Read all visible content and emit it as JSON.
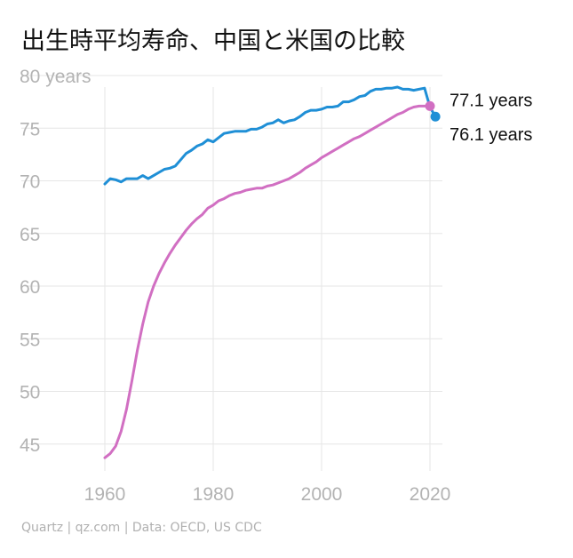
{
  "title": "出生時平均寿命、中国と米国の比較",
  "source": "Quartz | qz.com | Data: OECD, US CDC",
  "chart_data": {
    "type": "line",
    "title": "出生時平均寿命、中国と米国の比較",
    "y_unit_label": "80 years",
    "ylim": [
      43,
      80
    ],
    "xlim": [
      1960,
      2021
    ],
    "y_ticks": [
      "80 years",
      "75",
      "70",
      "65",
      "60",
      "55",
      "50",
      "45"
    ],
    "y_tick_values": [
      80,
      75,
      70,
      65,
      60,
      55,
      50,
      45
    ],
    "x_ticks": [
      "1960",
      "1980",
      "2000",
      "2020"
    ],
    "x_tick_values": [
      1960,
      1980,
      2000,
      2020
    ],
    "grid": true,
    "colors": {
      "us": "#1f8fd6",
      "china": "#d16fc2"
    },
    "end_labels": {
      "china": "77.1 years",
      "us": "76.1 years"
    },
    "series": [
      {
        "key": "us",
        "x": [
          1960,
          1961,
          1962,
          1963,
          1964,
          1965,
          1966,
          1967,
          1968,
          1969,
          1970,
          1971,
          1972,
          1973,
          1974,
          1975,
          1976,
          1977,
          1978,
          1979,
          1980,
          1981,
          1982,
          1983,
          1984,
          1985,
          1986,
          1987,
          1988,
          1989,
          1990,
          1991,
          1992,
          1993,
          1994,
          1995,
          1996,
          1997,
          1998,
          1999,
          2000,
          2001,
          2002,
          2003,
          2004,
          2005,
          2006,
          2007,
          2008,
          2009,
          2010,
          2011,
          2012,
          2013,
          2014,
          2015,
          2016,
          2017,
          2018,
          2019,
          2020,
          2021
        ],
        "values": [
          69.7,
          70.2,
          70.1,
          69.9,
          70.2,
          70.2,
          70.2,
          70.5,
          70.2,
          70.5,
          70.8,
          71.1,
          71.2,
          71.4,
          72.0,
          72.6,
          72.9,
          73.3,
          73.5,
          73.9,
          73.7,
          74.1,
          74.5,
          74.6,
          74.7,
          74.7,
          74.7,
          74.9,
          74.9,
          75.1,
          75.4,
          75.5,
          75.8,
          75.5,
          75.7,
          75.8,
          76.1,
          76.5,
          76.7,
          76.7,
          76.8,
          77.0,
          77.0,
          77.1,
          77.5,
          77.5,
          77.7,
          78.0,
          78.1,
          78.5,
          78.7,
          78.7,
          78.8,
          78.8,
          78.9,
          78.7,
          78.7,
          78.6,
          78.7,
          78.8,
          77.0,
          76.1
        ]
      },
      {
        "key": "china",
        "x": [
          1960,
          1961,
          1962,
          1963,
          1964,
          1965,
          1966,
          1967,
          1968,
          1969,
          1970,
          1971,
          1972,
          1973,
          1974,
          1975,
          1976,
          1977,
          1978,
          1979,
          1980,
          1981,
          1982,
          1983,
          1984,
          1985,
          1986,
          1987,
          1988,
          1989,
          1990,
          1991,
          1992,
          1993,
          1994,
          1995,
          1996,
          1997,
          1998,
          1999,
          2000,
          2001,
          2002,
          2003,
          2004,
          2005,
          2006,
          2007,
          2008,
          2009,
          2010,
          2011,
          2012,
          2013,
          2014,
          2015,
          2016,
          2017,
          2018,
          2019,
          2020
        ],
        "values": [
          43.7,
          44.1,
          44.8,
          46.2,
          48.3,
          51.0,
          53.9,
          56.4,
          58.5,
          60.0,
          61.2,
          62.2,
          63.1,
          63.9,
          64.6,
          65.3,
          65.9,
          66.4,
          66.8,
          67.4,
          67.7,
          68.1,
          68.3,
          68.6,
          68.8,
          68.9,
          69.1,
          69.2,
          69.3,
          69.3,
          69.5,
          69.6,
          69.8,
          70.0,
          70.2,
          70.5,
          70.8,
          71.2,
          71.5,
          71.8,
          72.2,
          72.5,
          72.8,
          73.1,
          73.4,
          73.7,
          74.0,
          74.2,
          74.5,
          74.8,
          75.1,
          75.4,
          75.7,
          76.0,
          76.3,
          76.5,
          76.8,
          77.0,
          77.1,
          77.1,
          77.1
        ]
      }
    ]
  }
}
